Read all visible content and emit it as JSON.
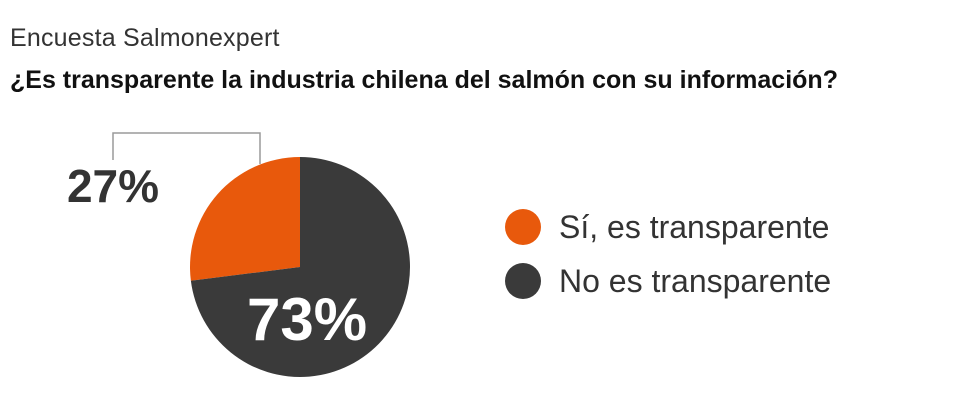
{
  "header": {
    "subtitle": "Encuesta Salmonexpert",
    "title": "¿Es transparente la industria chilena del salmón con su información?"
  },
  "colors": {
    "yes": "#e8590c",
    "no": "#3a3a3a",
    "leader": "#9a9a9a",
    "outside_label": "#333333",
    "inside_label": "#ffffff"
  },
  "chart_data": {
    "type": "pie",
    "title": "¿Es transparente la industria chilena del salmón con su información?",
    "subtitle": "Encuesta Salmonexpert",
    "series": [
      {
        "name": "",
        "labels": [
          "Sí, es transparente",
          "No es transparente"
        ],
        "values": [
          27,
          73
        ],
        "display_labels": [
          "27%",
          "73%"
        ]
      }
    ],
    "legend": {
      "position": "right",
      "entries": [
        "Sí, es transparente",
        "No es transparente"
      ]
    }
  }
}
